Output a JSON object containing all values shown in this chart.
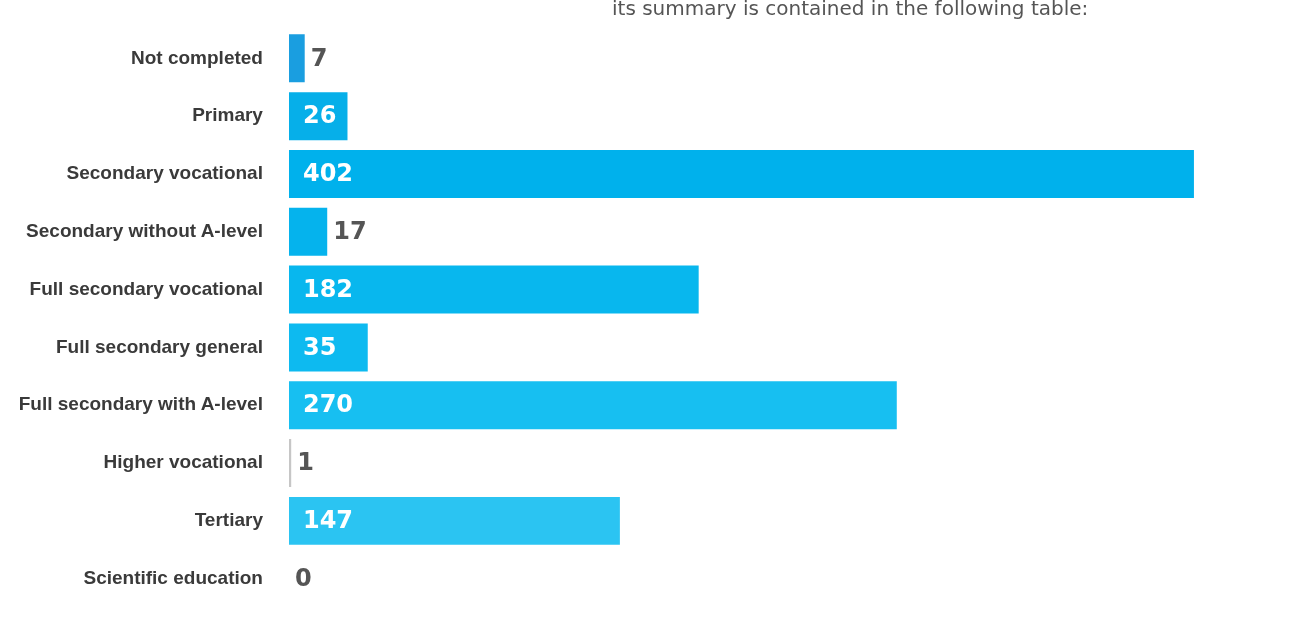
{
  "chart_data": {
    "type": "bar",
    "orientation": "horizontal",
    "annotations": [
      "its summary is contained in the following table:"
    ],
    "categories": [
      "Not completed",
      "Primary",
      "Secondary vocational",
      "Secondary without A-level",
      "Full secondary vocational",
      "Full secondary general",
      "Full secondary with A-level",
      "Higher vocational",
      "Tertiary",
      "Scientific education"
    ],
    "values": [
      7,
      26,
      402,
      17,
      182,
      35,
      270,
      1,
      147,
      0
    ],
    "colors": [
      "#1a9ee0",
      "#06afe9",
      "#00b1ec",
      "#05b3ed",
      "#08b7ee",
      "#0dbaf0",
      "#17bff1",
      "#c6c6c6",
      "#2bc4f2",
      "#c6c6c6"
    ],
    "tick_labels": "y",
    "grid": false,
    "legend": false,
    "data_labels": true
  }
}
